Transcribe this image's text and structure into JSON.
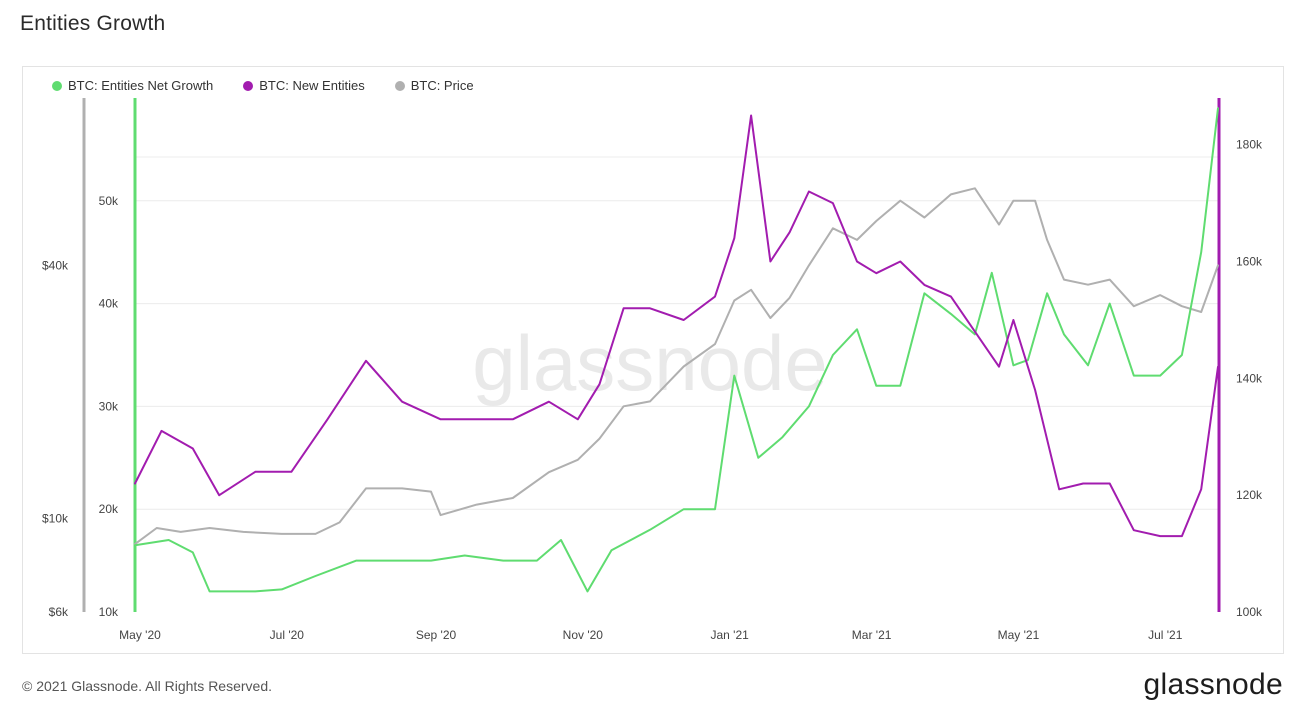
{
  "page": {
    "title": "Entities Growth",
    "copyright": "© 2021 Glassnode. All Rights Reserved.",
    "brand": "glassnode",
    "watermark": "glassnode"
  },
  "colors": {
    "net_growth": "#5fdc70",
    "new_entities": "#a21caf",
    "price": "#b0b0b0"
  },
  "chart_data": {
    "type": "line",
    "title": "Entities Growth",
    "legend_position": "top-left",
    "grid": true,
    "x_ticks": [
      "May '20",
      "Jul '20",
      "Sep '20",
      "Nov '20",
      "Jan '21",
      "Mar '21",
      "May '21",
      "Jul '21"
    ],
    "x_range": [
      "2020-05-01",
      "2021-07-25"
    ],
    "axes": {
      "price": {
        "ticks": [
          "$6k",
          "$10k",
          "$40k"
        ],
        "tick_values": [
          6000,
          10000,
          40000
        ],
        "scale": "log",
        "range": [
          6000,
          100000
        ]
      },
      "net_growth": {
        "ticks": [
          "10k",
          "20k",
          "30k",
          "40k",
          "50k"
        ],
        "tick_values": [
          10000,
          20000,
          30000,
          40000,
          50000
        ],
        "range": [
          10000,
          60000
        ]
      },
      "new_entities": {
        "ticks": [
          "100k",
          "120k",
          "140k",
          "160k",
          "180k"
        ],
        "tick_values": [
          100000,
          120000,
          140000,
          160000,
          180000
        ],
        "range": [
          100000,
          188000
        ]
      }
    },
    "series": [
      {
        "name": "BTC: Entities Net Growth",
        "axis": "net_growth",
        "x": [
          "2020-05-01",
          "2020-05-15",
          "2020-05-25",
          "2020-06-01",
          "2020-06-10",
          "2020-06-20",
          "2020-07-01",
          "2020-07-15",
          "2020-08-01",
          "2020-08-15",
          "2020-09-01",
          "2020-09-15",
          "2020-10-01",
          "2020-10-15",
          "2020-10-25",
          "2020-11-05",
          "2020-11-15",
          "2020-12-01",
          "2020-12-15",
          "2020-12-28",
          "2021-01-05",
          "2021-01-15",
          "2021-01-25",
          "2021-02-05",
          "2021-02-15",
          "2021-02-25",
          "2021-03-05",
          "2021-03-15",
          "2021-03-25",
          "2021-04-05",
          "2021-04-15",
          "2021-04-22",
          "2021-05-01",
          "2021-05-07",
          "2021-05-15",
          "2021-05-22",
          "2021-06-01",
          "2021-06-10",
          "2021-06-20",
          "2021-07-01",
          "2021-07-10",
          "2021-07-18",
          "2021-07-25"
        ],
        "values": [
          16500,
          17000,
          15800,
          12000,
          12000,
          12000,
          12200,
          13500,
          15000,
          15000,
          15000,
          15500,
          15000,
          15000,
          17000,
          12000,
          16000,
          18000,
          20000,
          20000,
          33000,
          25000,
          27000,
          30000,
          35000,
          37500,
          32000,
          32000,
          41000,
          39000,
          37000,
          43000,
          34000,
          34500,
          41000,
          37000,
          34000,
          40000,
          33000,
          33000,
          35000,
          45000,
          59000
        ]
      },
      {
        "name": "BTC: New Entities",
        "axis": "new_entities",
        "x": [
          "2020-05-01",
          "2020-05-12",
          "2020-05-25",
          "2020-06-05",
          "2020-06-20",
          "2020-07-05",
          "2020-07-20",
          "2020-08-05",
          "2020-08-20",
          "2020-09-05",
          "2020-09-20",
          "2020-10-05",
          "2020-10-20",
          "2020-11-01",
          "2020-11-10",
          "2020-11-20",
          "2020-12-01",
          "2020-12-15",
          "2020-12-28",
          "2021-01-05",
          "2021-01-12",
          "2021-01-20",
          "2021-01-28",
          "2021-02-05",
          "2021-02-15",
          "2021-02-25",
          "2021-03-05",
          "2021-03-15",
          "2021-03-25",
          "2021-04-05",
          "2021-04-15",
          "2021-04-25",
          "2021-05-01",
          "2021-05-10",
          "2021-05-20",
          "2021-05-30",
          "2021-06-10",
          "2021-06-20",
          "2021-07-01",
          "2021-07-10",
          "2021-07-18",
          "2021-07-25"
        ],
        "values": [
          122000,
          131000,
          128000,
          120000,
          124000,
          124000,
          133000,
          143000,
          136000,
          133000,
          133000,
          133000,
          136000,
          133000,
          139000,
          152000,
          152000,
          150000,
          154000,
          164000,
          185000,
          160000,
          165000,
          172000,
          170000,
          160000,
          158000,
          160000,
          156000,
          154000,
          148000,
          142000,
          150000,
          138000,
          121000,
          122000,
          122000,
          114000,
          113000,
          113000,
          121000,
          142000
        ]
      },
      {
        "name": "BTC: Price",
        "axis": "price",
        "x": [
          "2020-05-01",
          "2020-05-10",
          "2020-05-20",
          "2020-06-01",
          "2020-06-15",
          "2020-07-01",
          "2020-07-15",
          "2020-07-25",
          "2020-08-05",
          "2020-08-20",
          "2020-09-01",
          "2020-09-05",
          "2020-09-20",
          "2020-10-05",
          "2020-10-20",
          "2020-11-01",
          "2020-11-10",
          "2020-11-20",
          "2020-12-01",
          "2020-12-15",
          "2020-12-28",
          "2021-01-05",
          "2021-01-12",
          "2021-01-20",
          "2021-01-28",
          "2021-02-05",
          "2021-02-15",
          "2021-02-25",
          "2021-03-05",
          "2021-03-15",
          "2021-03-25",
          "2021-04-05",
          "2021-04-15",
          "2021-04-25",
          "2021-05-01",
          "2021-05-10",
          "2021-05-15",
          "2021-05-22",
          "2021-06-01",
          "2021-06-10",
          "2021-06-20",
          "2021-07-01",
          "2021-07-10",
          "2021-07-18",
          "2021-07-25"
        ],
        "values": [
          8700,
          9500,
          9300,
          9500,
          9300,
          9200,
          9200,
          9800,
          11800,
          11800,
          11600,
          10200,
          10800,
          11200,
          12900,
          13800,
          15500,
          18500,
          19000,
          23000,
          26000,
          33000,
          35000,
          30000,
          33500,
          40000,
          49000,
          46000,
          51000,
          57000,
          52000,
          59000,
          61000,
          50000,
          57000,
          57000,
          46000,
          37000,
          36000,
          37000,
          32000,
          34000,
          32000,
          31000,
          40000
        ]
      }
    ]
  }
}
